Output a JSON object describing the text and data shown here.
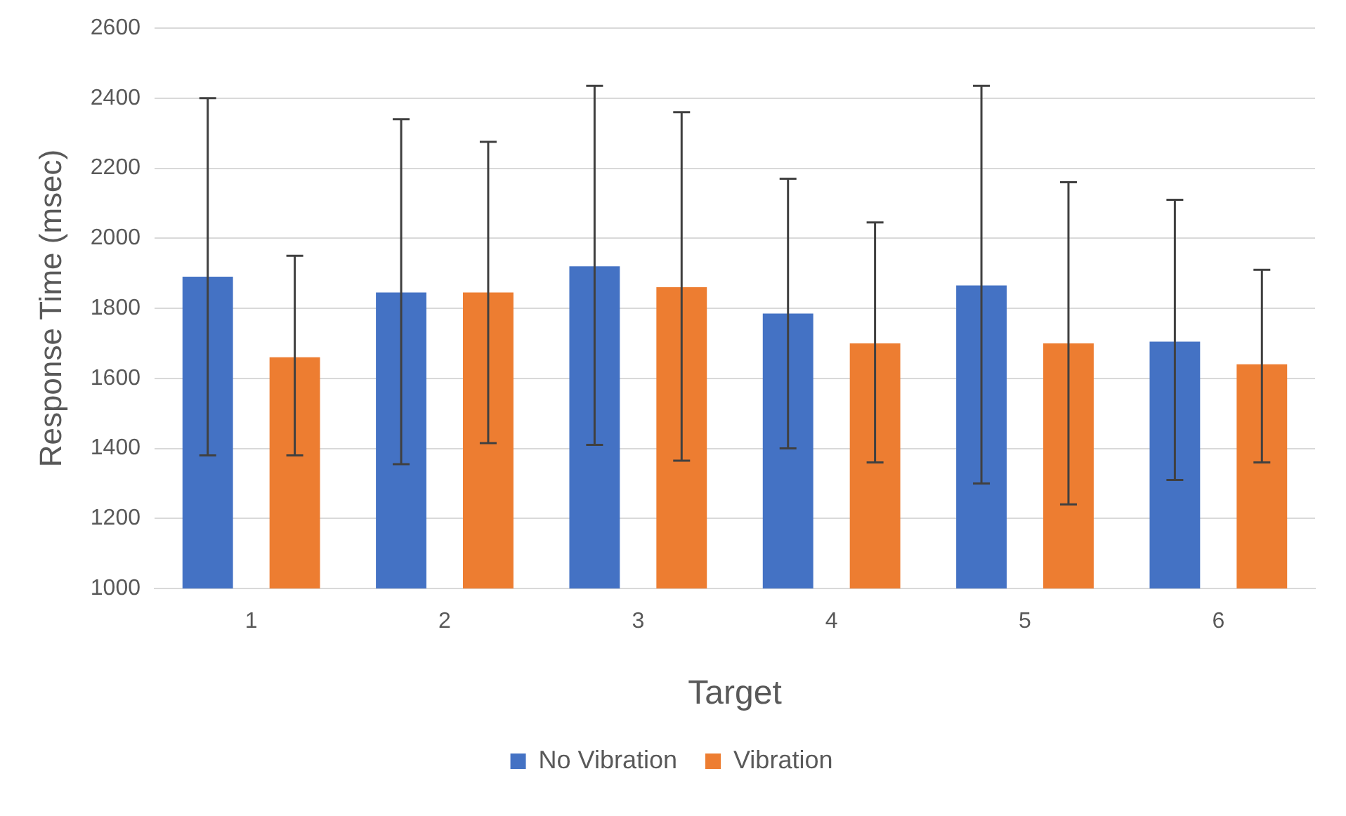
{
  "chart_data": {
    "type": "bar",
    "xlabel": "Target",
    "ylabel": "Response Time (msec)",
    "categories": [
      "1",
      "2",
      "3",
      "4",
      "5",
      "6"
    ],
    "series": [
      {
        "name": "No Vibration",
        "color": "#4472c4",
        "values": [
          1890,
          1845,
          1920,
          1785,
          1865,
          1705
        ],
        "errors": [
          [
            1380,
            2400
          ],
          [
            1355,
            2340
          ],
          [
            1410,
            2435
          ],
          [
            1400,
            2170
          ],
          [
            1300,
            2435
          ],
          [
            1310,
            2110
          ]
        ]
      },
      {
        "name": "Vibration",
        "color": "#ed7d31",
        "values": [
          1660,
          1845,
          1860,
          1700,
          1700,
          1640
        ],
        "errors": [
          [
            1380,
            1950
          ],
          [
            1415,
            2275
          ],
          [
            1365,
            2360
          ],
          [
            1360,
            2045
          ],
          [
            1240,
            2160
          ],
          [
            1360,
            1910
          ]
        ]
      }
    ],
    "ylim": [
      1000,
      2600
    ],
    "yticks": [
      1000,
      1200,
      1400,
      1600,
      1800,
      2000,
      2200,
      2400,
      2600
    ],
    "grid": "y",
    "legend": "bottom"
  }
}
